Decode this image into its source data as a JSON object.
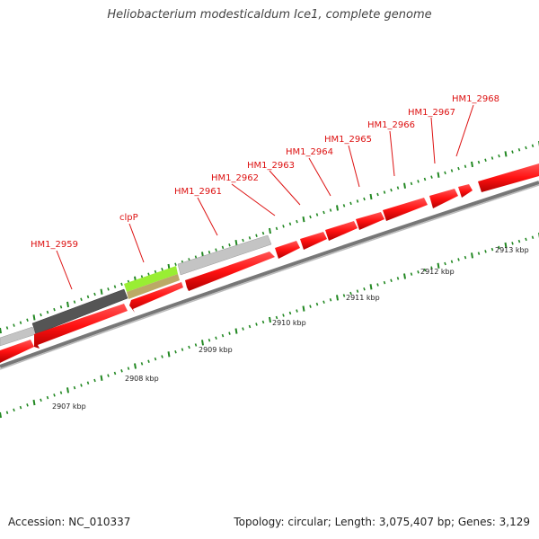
{
  "title": "Heliobacterium modesticaldum Ice1, complete genome",
  "footer": {
    "accession": "Accession: NC_010337",
    "stats": "Topology: circular; Length: 3,075,407 bp; Genes: 3,129"
  },
  "colors": {
    "cds": "#ff1111",
    "label": "#dd1111",
    "backbone": "#888888",
    "tick": "#228822",
    "gray_feature": "#c4c4c4",
    "dark_feature": "#555555",
    "green_feature": "#99ee33",
    "olive_feature": "#bbaa66"
  },
  "gene_labels": [
    "HM1_2959",
    "clpP",
    "HM1_2961",
    "HM1_2962",
    "HM1_2963",
    "HM1_2964",
    "HM1_2965",
    "HM1_2966",
    "HM1_2967",
    "HM1_2968"
  ],
  "scale_labels": [
    "2907 kbp",
    "2908 kbp",
    "2909 kbp",
    "2910 kbp",
    "2911 kbp",
    "2912 kbp",
    "2913 kbp"
  ]
}
